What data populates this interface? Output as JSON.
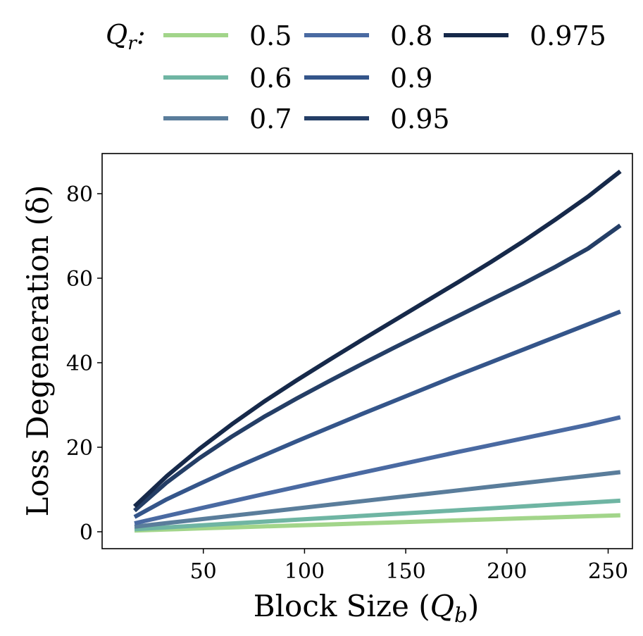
{
  "chart_data": {
    "type": "line",
    "xlabel": "Block Size (Q_b)",
    "ylabel": "Loss Degeneration (δ)",
    "xlim": [
      0,
      262
    ],
    "ylim": [
      -4,
      89.5
    ],
    "xticks": [
      50,
      100,
      150,
      200,
      250
    ],
    "yticks": [
      0,
      20,
      40,
      60,
      80
    ],
    "x": [
      16,
      32,
      48,
      64,
      80,
      96,
      112,
      128,
      144,
      160,
      176,
      192,
      208,
      224,
      240,
      256
    ],
    "legend": {
      "title": "Q_r:",
      "placement": "top (outside plot)"
    },
    "series": [
      {
        "name": "0.5",
        "color": "#a2d58a",
        "values": [
          0.3,
          0.54,
          0.78,
          1.02,
          1.26,
          1.5,
          1.74,
          1.98,
          2.22,
          2.46,
          2.7,
          2.94,
          3.18,
          3.42,
          3.66,
          3.9
        ]
      },
      {
        "name": "0.6",
        "color": "#6fb5a3",
        "values": [
          0.6,
          1.05,
          1.5,
          1.95,
          2.4,
          2.85,
          3.3,
          3.75,
          4.2,
          4.65,
          5.1,
          5.55,
          6.0,
          6.45,
          6.9,
          7.35
        ]
      },
      {
        "name": "0.7",
        "color": "#5a7d9b",
        "values": [
          1.2,
          2.06,
          2.92,
          3.78,
          4.64,
          5.5,
          6.36,
          7.22,
          8.08,
          8.94,
          9.8,
          10.66,
          11.52,
          12.38,
          13.24,
          14.1
        ]
      },
      {
        "name": "0.8",
        "color": "#4a6aa2",
        "values": [
          2.0,
          3.75,
          5.48,
          7.2,
          8.92,
          10.6,
          12.28,
          13.95,
          15.6,
          17.25,
          18.9,
          20.5,
          22.1,
          23.7,
          25.3,
          27.1
        ]
      },
      {
        "name": "0.9",
        "color": "#34558a",
        "values": [
          3.5,
          7.7,
          11.3,
          14.8,
          18.1,
          21.4,
          24.6,
          27.8,
          30.9,
          34.0,
          37.1,
          40.1,
          43.1,
          46.1,
          49.1,
          52.1
        ]
      },
      {
        "name": "0.95",
        "color": "#243e66",
        "values": [
          5.0,
          11.7,
          17.4,
          22.5,
          27.2,
          31.5,
          35.6,
          39.6,
          43.5,
          47.3,
          51.1,
          54.9,
          58.7,
          62.7,
          67.0,
          72.5
        ]
      },
      {
        "name": "0.975",
        "color": "#16294a",
        "values": [
          6.0,
          13.2,
          19.6,
          25.4,
          30.8,
          35.8,
          40.6,
          45.3,
          49.9,
          54.5,
          59.1,
          63.8,
          68.7,
          73.9,
          79.3,
          85.3
        ]
      }
    ]
  }
}
